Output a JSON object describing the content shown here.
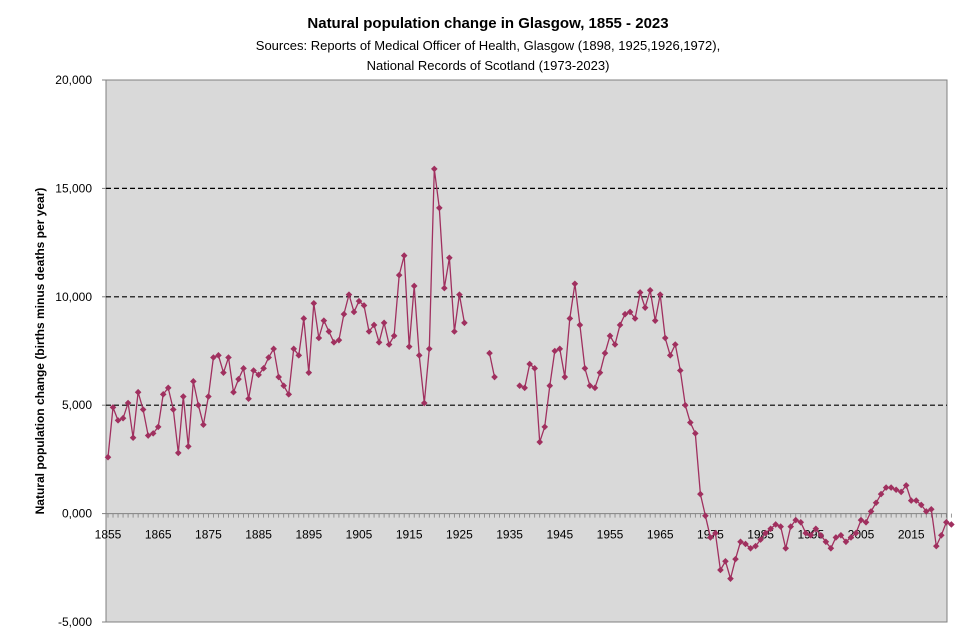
{
  "chart_data": {
    "type": "line",
    "title": "Natural population change in Glasgow, 1855 - 2023",
    "subtitle_lines": [
      "Sources: Reports of Medical Officer of Health, Glasgow (1898, 1925,1926,1972),",
      "National Records of Scotland (1973-2023)"
    ],
    "xlabel": "",
    "ylabel": "Natural population change (births minus deaths per year)",
    "xlim": [
      1855,
      2023
    ],
    "ylim": [
      -5000,
      20000
    ],
    "x_ticks": [
      "1855",
      "1865",
      "1875",
      "1885",
      "1895",
      "1905",
      "1915",
      "1925",
      "1935",
      "1945",
      "1955",
      "1965",
      "1975",
      "1985",
      "1995",
      "2005",
      "2015"
    ],
    "y_ticks": [
      "20,000",
      "15,000",
      "10,000",
      "5,000",
      "0,000",
      "-5,000"
    ],
    "y_tick_values": [
      20000,
      15000,
      10000,
      5000,
      0,
      -5000
    ],
    "grid_y_values": [
      15000,
      10000,
      5000
    ],
    "grid": "dashed horizontal",
    "colors": {
      "series": "#a0305f",
      "plot_bg": "#d9d9d9",
      "frame": "#808080",
      "grid": "#000000"
    },
    "series": [
      {
        "segments": [
          {
            "x_start": 1855,
            "values": [
              2600,
              4900,
              4300,
              4400,
              5100,
              3500,
              5600,
              4800,
              3600,
              3700,
              4000,
              5500,
              5800,
              4800,
              2800,
              5400,
              3100,
              6100,
              5000,
              4100,
              5400,
              7200,
              7300,
              6500,
              7200,
              5600,
              6200,
              6700,
              5300,
              6600,
              6400,
              6700,
              7200,
              7600,
              6300,
              5900,
              5500,
              7600,
              7300,
              9000,
              6500,
              9700,
              8100,
              8900,
              8400,
              7900,
              8000,
              9200,
              10100,
              9300,
              9800,
              9600,
              8400,
              8700,
              7900,
              8800,
              7800,
              8200,
              11000,
              11900,
              7700,
              10500,
              7300,
              5100,
              7600,
              15900,
              14100,
              10400,
              11800,
              8400,
              10100,
              8800
            ]
          },
          {
            "x_start": 1931,
            "values": [
              7400,
              6300
            ]
          },
          {
            "x_start": 1937,
            "values": [
              5900,
              5800,
              6900,
              6700,
              3300,
              4000,
              5900,
              7500,
              7600,
              6300,
              9000,
              10600,
              8700,
              6700,
              5900,
              5800,
              6500,
              7400,
              8200,
              7800,
              8700,
              9200,
              9300,
              9000,
              10200,
              9500,
              10300,
              8900,
              10100,
              8100,
              7300,
              7800,
              6600,
              5000,
              4200,
              3700,
              900,
              -100,
              -1100,
              -900,
              -2600,
              -2200,
              -3000,
              -2100,
              -1300,
              -1400,
              -1600,
              -1500,
              -1200,
              -900,
              -700,
              -500,
              -600,
              -1600,
              -600,
              -300,
              -400,
              -900,
              -1000,
              -700,
              -1000,
              -1300,
              -1600,
              -1100,
              -1000,
              -1300,
              -1100,
              -900,
              -300,
              -400,
              100,
              500,
              900,
              1200,
              1200,
              1100,
              1000,
              1300,
              600,
              600,
              400,
              100,
              200,
              -1500,
              -1000,
              -400,
              -500
            ]
          }
        ]
      }
    ]
  }
}
